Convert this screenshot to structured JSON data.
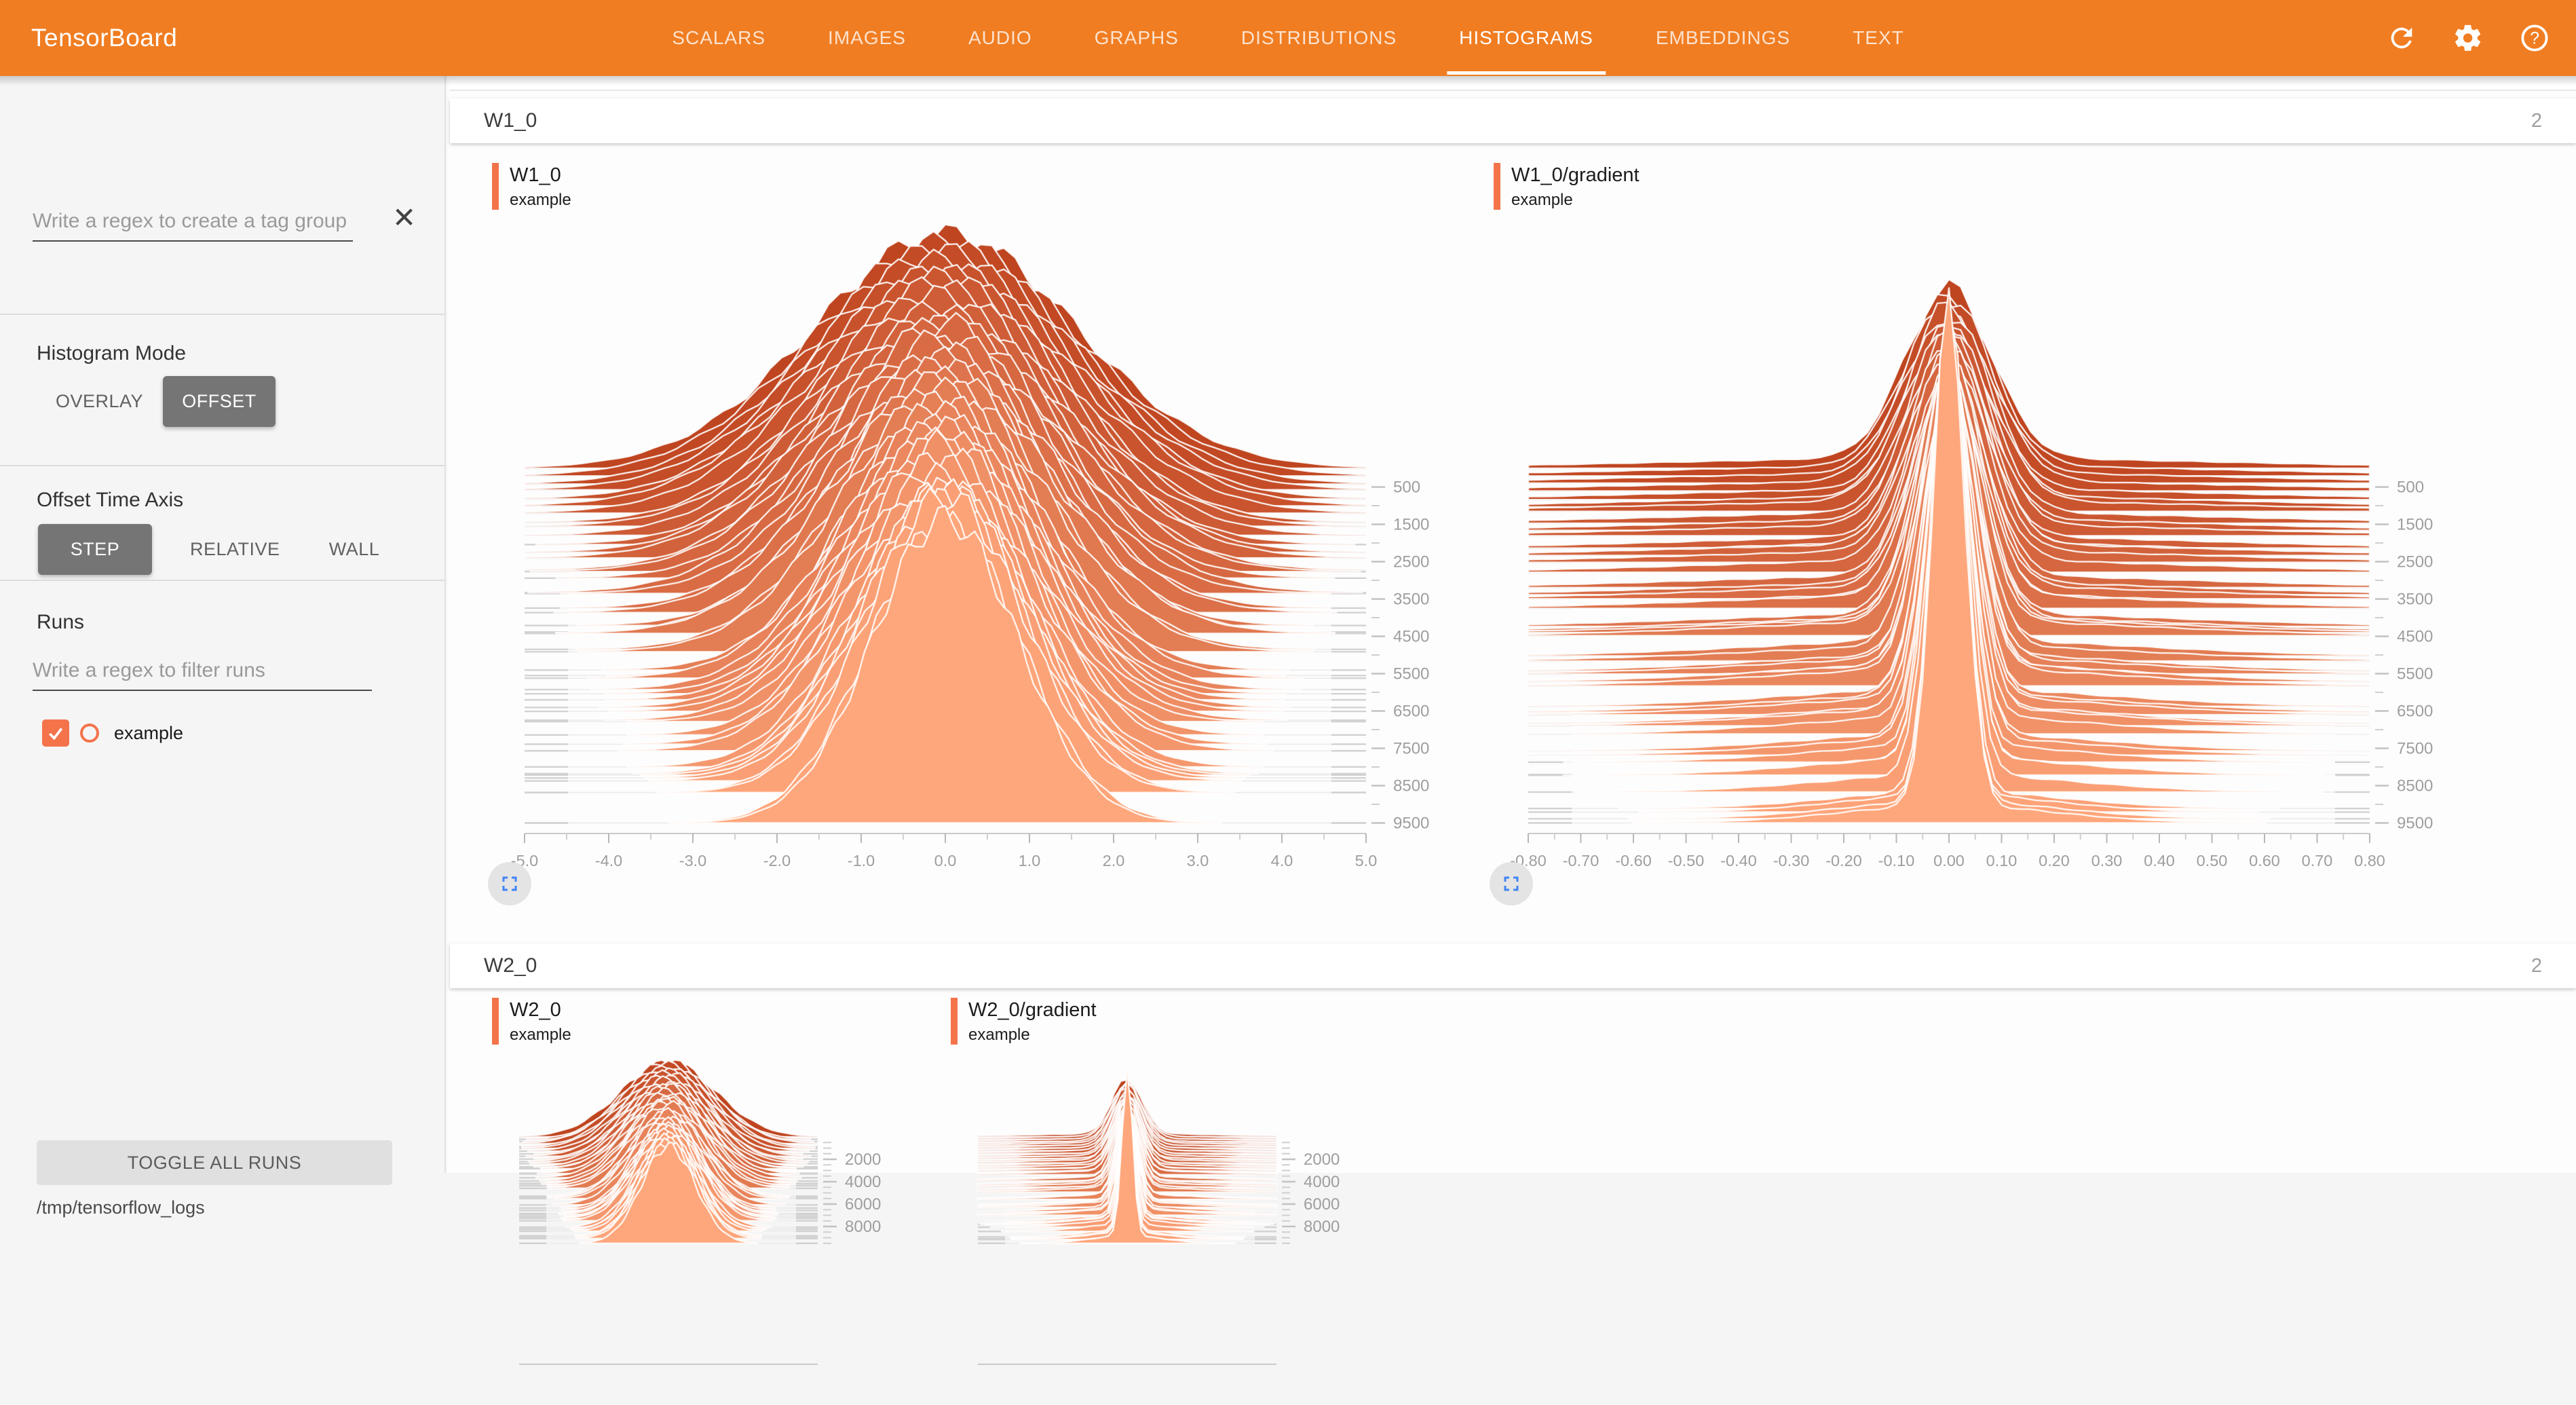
{
  "header": {
    "app_title": "TensorBoard",
    "tabs": [
      "SCALARS",
      "IMAGES",
      "AUDIO",
      "GRAPHS",
      "DISTRIBUTIONS",
      "HISTOGRAMS",
      "EMBEDDINGS",
      "TEXT"
    ],
    "active_tab": "HISTOGRAMS",
    "bg_color": "#f07d22",
    "icons": [
      "refresh-icon",
      "settings-icon",
      "help-icon"
    ]
  },
  "sidebar": {
    "tag_filter_placeholder": "Write a regex to create a tag group",
    "close_icon": "✕",
    "histogram_mode": {
      "label": "Histogram Mode",
      "options": [
        "OVERLAY",
        "OFFSET"
      ],
      "selected": "OFFSET"
    },
    "offset_time_axis": {
      "label": "Offset Time Axis",
      "options": [
        "STEP",
        "RELATIVE",
        "WALL"
      ],
      "selected": "STEP"
    },
    "runs": {
      "label": "Runs",
      "filter_placeholder": "Write a regex to filter runs",
      "items": [
        {
          "name": "example",
          "checked": true,
          "color": "#f4734b"
        }
      ]
    },
    "toggle_all_label": "TOGGLE ALL RUNS",
    "log_dir": "/tmp/tensorflow_logs"
  },
  "sections": [
    {
      "name": "W1_0",
      "count": "2"
    },
    {
      "name": "W2_0",
      "count": "2"
    }
  ],
  "run_color": "#f4734b",
  "chart_data": [
    {
      "type": "histogram_offset_ridgeline",
      "section": "W1_0",
      "title": "W1_0",
      "run": "example",
      "x_tick_labels": [
        "-5.0",
        "-4.0",
        "-3.0",
        "-2.0",
        "-1.0",
        "0.0",
        "1.0",
        "2.0",
        "3.0",
        "4.0",
        "5.0"
      ],
      "x_range": [
        -5,
        5
      ],
      "step_tick_labels": [
        "500",
        "1500",
        "2500",
        "3500",
        "4500",
        "5500",
        "6500",
        "7500",
        "8500"
      ],
      "step_label_start": 500,
      "step_label_every": 1000,
      "step_range": [
        0,
        9500
      ],
      "colors": {
        "oldest_step": "#bf4520",
        "newest_step": "#ffa77c"
      },
      "distribution_estimate": {
        "shape": "gaussian",
        "mean": 0.0,
        "sigma_first_step": 1.55,
        "sigma_last_step": 0.9,
        "trend": "bell narrows as training progresses"
      }
    },
    {
      "type": "histogram_offset_ridgeline",
      "section": "W1_0",
      "title": "W1_0/gradient",
      "run": "example",
      "x_tick_labels": [
        "-0.80",
        "-0.70",
        "-0.60",
        "-0.50",
        "-0.40",
        "-0.30",
        "-0.20",
        "-0.10",
        "0.00",
        "0.10",
        "0.20",
        "0.30",
        "0.40",
        "0.50",
        "0.60",
        "0.70",
        "0.80"
      ],
      "x_range": [
        -0.8,
        0.8
      ],
      "step_tick_labels": [
        "500",
        "1500",
        "2500",
        "3500",
        "4500",
        "5500",
        "6500",
        "7500",
        "8500"
      ],
      "step_label_start": 500,
      "step_label_every": 1000,
      "step_range": [
        0,
        9500
      ],
      "colors": {
        "oldest_step": "#bf4520",
        "newest_step": "#ffa77c"
      },
      "distribution_estimate": {
        "shape": "gaussian_spike",
        "mean": 0.0,
        "sigma_first_step": 0.085,
        "sigma_last_step": 0.03,
        "trend": "sharp spike at 0 with small side lobes"
      }
    },
    {
      "type": "histogram_offset_ridgeline",
      "section": "W2_0",
      "title": "W2_0",
      "run": "example",
      "x_tick_labels": [],
      "step_tick_labels": [
        "2000"
      ],
      "step_label_start": 2000,
      "step_label_every": 2000,
      "step_range": [
        0,
        9500
      ],
      "colors": {
        "oldest_step": "#bf4520",
        "newest_step": "#ffa77c"
      },
      "distribution_estimate": {
        "shape": "gaussian",
        "mean": 0.0,
        "sigma_first_step": 1.55,
        "sigma_last_step": 0.9,
        "trend": "bell narrows as training progresses"
      }
    },
    {
      "type": "histogram_offset_ridgeline",
      "section": "W2_0",
      "title": "W2_0/gradient",
      "run": "example",
      "x_tick_labels": [],
      "step_tick_labels": [
        "2000"
      ],
      "step_label_start": 2000,
      "step_label_every": 2000,
      "step_range": [
        0,
        9500
      ],
      "colors": {
        "oldest_step": "#bf4520",
        "newest_step": "#ffa77c"
      },
      "distribution_estimate": {
        "shape": "gaussian_spike",
        "mean": 0.0,
        "sigma_first_step": 0.085,
        "sigma_last_step": 0.03,
        "trend": "sharp spike at 0"
      }
    }
  ]
}
